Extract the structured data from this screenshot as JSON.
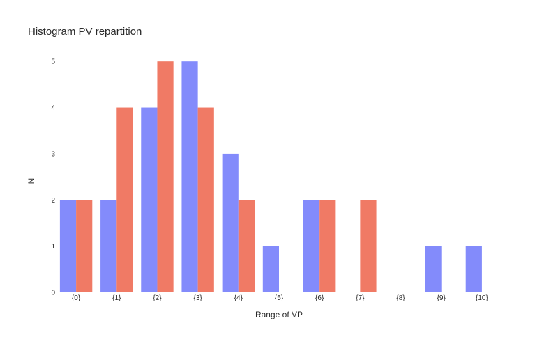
{
  "chart_data": {
    "type": "bar",
    "title": "Histogram PV repartition",
    "xlabel": "Range of VP",
    "ylabel": "N",
    "categories": [
      "{0}",
      "{1}",
      "{2}",
      "{3}",
      "{4}",
      "{5}",
      "{6}",
      "{7}",
      "{8}",
      "{9}",
      "{10}"
    ],
    "series": [
      {
        "values": [
          2,
          2,
          4,
          5,
          3,
          1,
          2,
          0,
          0,
          1,
          1
        ],
        "color": "#838bfb"
      },
      {
        "values": [
          2,
          4,
          5,
          4,
          2,
          0,
          2,
          2,
          0,
          0,
          0
        ],
        "color": "#f07a65"
      }
    ],
    "y_ticks": [
      0,
      1,
      2,
      3,
      4,
      5
    ],
    "ylim": [
      0,
      5.5
    ],
    "grid": false,
    "legend": "none"
  }
}
